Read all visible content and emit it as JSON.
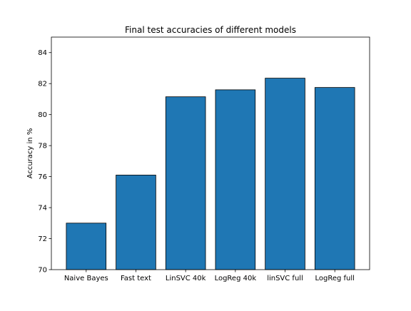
{
  "chart_data": {
    "type": "bar",
    "title": "Final test accuracies of different models",
    "xlabel": "",
    "ylabel": "Accuracy in %",
    "categories": [
      "Naive Bayes",
      "Fast text",
      "LinSVC 40k",
      "LogReg 40k",
      "linSVC full",
      "LogReg full"
    ],
    "values": [
      73.0,
      76.1,
      81.15,
      81.6,
      82.35,
      81.75
    ],
    "ylim": [
      70,
      85
    ],
    "yticks": [
      70,
      72,
      74,
      76,
      78,
      80,
      82,
      84
    ],
    "bar_color": "#1f77b4",
    "edge_color": "#000000",
    "grid": false
  }
}
